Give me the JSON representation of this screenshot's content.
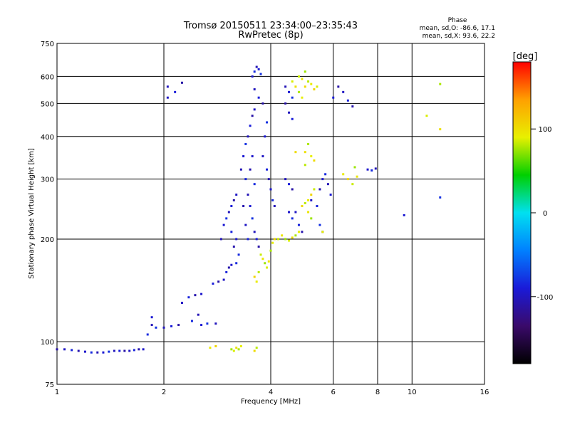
{
  "chart_data": {
    "type": "scatter",
    "title": "Tromsø 20150511 23:34:00–23:35:43",
    "subtitle": "RwPretec (8p)",
    "xlabel": "Frequency [MHz]",
    "ylabel": "Stationary phase Virtual Height [km]",
    "x_scale": "log2",
    "y_scale": "log",
    "xlim": [
      1,
      16
    ],
    "ylim": [
      75,
      750
    ],
    "x_ticks": [
      1,
      2,
      4,
      6,
      8,
      10,
      16
    ],
    "y_ticks": [
      75,
      100,
      200,
      300,
      400,
      500,
      600,
      750
    ],
    "grid": true,
    "stats": {
      "heading": "Phase",
      "line1": "mean, sd,O: -86.6, 17.1",
      "line2": "mean, sd,X:  93.6, 22.2"
    },
    "colorbar": {
      "label": "[deg]",
      "range": [
        -180,
        180
      ],
      "ticks": [
        100,
        0,
        -100
      ],
      "colormap": "rainbow",
      "stops": [
        "#000000",
        "#3a0a6a",
        "#1a1ad8",
        "#0080ff",
        "#00e0f0",
        "#00d000",
        "#e8f000",
        "#ffa000",
        "#ff0000"
      ]
    },
    "series": [
      {
        "mode": "O",
        "phase_deg": -95,
        "points": [
          [
            1.0,
            95
          ],
          [
            1.05,
            95
          ],
          [
            1.1,
            94.5
          ],
          [
            1.15,
            94
          ],
          [
            1.2,
            93.5
          ],
          [
            1.25,
            93
          ],
          [
            1.3,
            93
          ],
          [
            1.35,
            93
          ],
          [
            1.4,
            93.5
          ],
          [
            1.45,
            94
          ],
          [
            1.5,
            94
          ],
          [
            1.55,
            94
          ],
          [
            1.6,
            94
          ],
          [
            1.65,
            94.5
          ],
          [
            1.7,
            95
          ],
          [
            1.75,
            95
          ],
          [
            1.8,
            105
          ],
          [
            1.85,
            112
          ],
          [
            1.85,
            118
          ],
          [
            1.9,
            110
          ],
          [
            2.0,
            110
          ],
          [
            2.1,
            111
          ],
          [
            2.2,
            112
          ],
          [
            2.25,
            130
          ],
          [
            2.35,
            135
          ],
          [
            2.45,
            137
          ],
          [
            2.55,
            138
          ],
          [
            2.4,
            115
          ],
          [
            2.5,
            120
          ],
          [
            2.55,
            112
          ],
          [
            2.65,
            113
          ],
          [
            2.8,
            113
          ],
          [
            2.75,
            148
          ],
          [
            2.85,
            150
          ],
          [
            2.95,
            152
          ],
          [
            3.0,
            160
          ],
          [
            3.05,
            165
          ],
          [
            3.1,
            168
          ],
          [
            3.2,
            170
          ],
          [
            2.9,
            200
          ],
          [
            2.95,
            220
          ],
          [
            3.0,
            230
          ],
          [
            3.05,
            240
          ],
          [
            3.1,
            250
          ],
          [
            3.15,
            260
          ],
          [
            3.2,
            270
          ],
          [
            3.1,
            210
          ],
          [
            3.15,
            190
          ],
          [
            3.2,
            200
          ],
          [
            3.25,
            180
          ],
          [
            3.3,
            320
          ],
          [
            3.35,
            350
          ],
          [
            3.4,
            380
          ],
          [
            3.45,
            400
          ],
          [
            3.5,
            430
          ],
          [
            3.55,
            460
          ],
          [
            3.6,
            480
          ],
          [
            3.4,
            300
          ],
          [
            3.5,
            320
          ],
          [
            3.55,
            350
          ],
          [
            3.6,
            290
          ],
          [
            3.45,
            270
          ],
          [
            3.5,
            250
          ],
          [
            3.55,
            230
          ],
          [
            3.6,
            210
          ],
          [
            3.65,
            200
          ],
          [
            3.7,
            190
          ],
          [
            3.4,
            220
          ],
          [
            3.45,
            200
          ],
          [
            3.35,
            250
          ],
          [
            3.55,
            600
          ],
          [
            3.6,
            620
          ],
          [
            3.65,
            640
          ],
          [
            3.7,
            630
          ],
          [
            3.75,
            610
          ],
          [
            3.6,
            550
          ],
          [
            3.7,
            520
          ],
          [
            3.8,
            500
          ],
          [
            3.8,
            350
          ],
          [
            3.9,
            320
          ],
          [
            3.95,
            300
          ],
          [
            4.0,
            280
          ],
          [
            4.05,
            260
          ],
          [
            4.1,
            250
          ],
          [
            3.85,
            400
          ],
          [
            3.9,
            440
          ],
          [
            4.4,
            300
          ],
          [
            4.5,
            290
          ],
          [
            4.6,
            280
          ],
          [
            4.7,
            240
          ],
          [
            4.8,
            220
          ],
          [
            4.9,
            210
          ],
          [
            4.5,
            240
          ],
          [
            4.6,
            230
          ],
          [
            4.4,
            560
          ],
          [
            4.5,
            540
          ],
          [
            4.6,
            520
          ],
          [
            4.5,
            470
          ],
          [
            4.6,
            450
          ],
          [
            4.4,
            500
          ],
          [
            5.2,
            260
          ],
          [
            5.4,
            250
          ],
          [
            5.5,
            280
          ],
          [
            5.6,
            300
          ],
          [
            5.7,
            310
          ],
          [
            5.8,
            290
          ],
          [
            5.9,
            270
          ],
          [
            5.5,
            220
          ],
          [
            5.6,
            210
          ],
          [
            6.0,
            520
          ],
          [
            6.2,
            560
          ],
          [
            6.4,
            540
          ],
          [
            6.6,
            510
          ],
          [
            6.8,
            490
          ],
          [
            7.5,
            320
          ],
          [
            7.7,
            318
          ],
          [
            7.9,
            322
          ],
          [
            9.5,
            235
          ],
          [
            12.0,
            265
          ],
          [
            2.05,
            560
          ],
          [
            2.15,
            540
          ],
          [
            2.25,
            575
          ],
          [
            2.05,
            520
          ]
        ]
      },
      {
        "mode": "X",
        "phase_deg": 90,
        "points": [
          [
            3.1,
            95
          ],
          [
            3.15,
            94
          ],
          [
            3.2,
            96
          ],
          [
            3.25,
            95
          ],
          [
            3.3,
            97
          ],
          [
            3.6,
            94
          ],
          [
            3.65,
            96
          ],
          [
            2.7,
            96
          ],
          [
            2.8,
            97
          ],
          [
            3.75,
            180
          ],
          [
            3.8,
            175
          ],
          [
            3.85,
            170
          ],
          [
            3.9,
            165
          ],
          [
            3.95,
            172
          ],
          [
            4.0,
            185
          ],
          [
            4.05,
            195
          ],
          [
            4.1,
            200
          ],
          [
            3.7,
            160
          ],
          [
            3.65,
            150
          ],
          [
            3.6,
            155
          ],
          [
            4.2,
            200
          ],
          [
            4.3,
            205
          ],
          [
            4.4,
            200
          ],
          [
            4.5,
            198
          ],
          [
            4.6,
            202
          ],
          [
            4.7,
            205
          ],
          [
            4.8,
            210
          ],
          [
            4.9,
            250
          ],
          [
            5.0,
            255
          ],
          [
            5.1,
            260
          ],
          [
            5.2,
            270
          ],
          [
            5.3,
            280
          ],
          [
            5.1,
            240
          ],
          [
            5.2,
            230
          ],
          [
            4.6,
            580
          ],
          [
            4.7,
            560
          ],
          [
            4.8,
            540
          ],
          [
            4.9,
            520
          ],
          [
            5.0,
            560
          ],
          [
            5.1,
            580
          ],
          [
            5.2,
            570
          ],
          [
            5.3,
            550
          ],
          [
            4.8,
            600
          ],
          [
            4.9,
            590
          ],
          [
            5.0,
            620
          ],
          [
            5.4,
            560
          ],
          [
            5.0,
            360
          ],
          [
            5.1,
            380
          ],
          [
            5.2,
            350
          ],
          [
            5.3,
            340
          ],
          [
            5.0,
            330
          ],
          [
            6.4,
            310
          ],
          [
            6.6,
            300
          ],
          [
            6.8,
            290
          ],
          [
            7.0,
            305
          ],
          [
            6.9,
            325
          ],
          [
            11.0,
            460
          ],
          [
            12.0,
            420
          ],
          [
            12.0,
            570
          ],
          [
            5.6,
            210
          ],
          [
            4.7,
            360
          ]
        ]
      }
    ]
  }
}
